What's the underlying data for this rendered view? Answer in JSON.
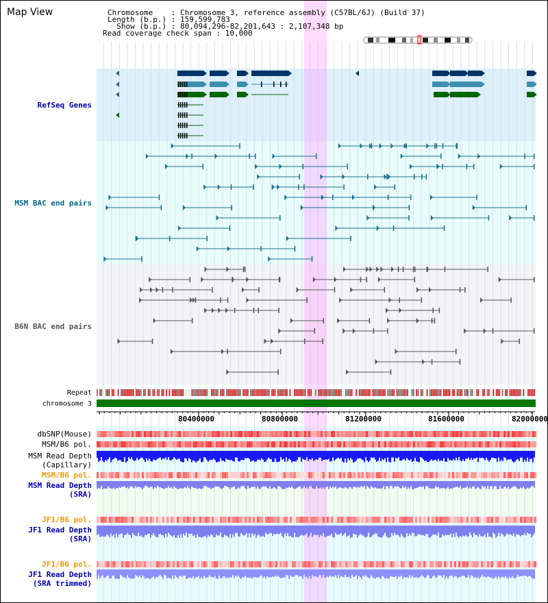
{
  "title": "Map View",
  "header": {
    "chromosome_line": "Chromosome    : Chromosome 3, reference assembly (C57BL/6J) (Build 37)",
    "length_line": "Length (b.p.) : 159,599,783",
    "show_line": "  Show (b.p.) : 80,094,296-82,201,643 : 2,107,348 bp",
    "coverage_line": "Read coverage check span : 10,000"
  },
  "tracks": {
    "refseq": "RefSeq Genes",
    "msm_bac": "MSM BAC end pairs",
    "b6n_bac": "B6N BAC end pairs",
    "repeat": "Repeat",
    "chromosome": "chromosome 3",
    "dbsnp": "dbSNP(Mouse)",
    "msm_b6_pol_1": "MSM/B6 pol.",
    "msm_read_depth_cap_1": "MSM Read Depth",
    "msm_read_depth_cap_2": "(Capillary)",
    "msm_b6_pol_2": "MSM/B6 pol.",
    "msm_read_depth_sra_1": "MSM Read Depth",
    "msm_read_depth_sra_2": "(SRA)",
    "jf1_b6_pol_1": "JF1/B6 pol.",
    "jf1_read_depth_sra_1": "JF1 Read Depth",
    "jf1_read_depth_sra_2": "(SRA)",
    "jf1_b6_pol_2": "JF1/B6 pol.",
    "jf1_read_depth_trim_1": "JF1 Read Depth",
    "jf1_read_depth_trim_2": "(SRA trimmed)"
  },
  "axis_ticks": [
    "80400000",
    "80800000",
    "81200000",
    "81600000",
    "82000000"
  ],
  "colors": {
    "refseq_label": "#0000aa",
    "msm_label": "#006688",
    "b6n_label": "#555555",
    "orange_label": "#ee9900",
    "blue_label": "#0000aa",
    "gene_dark": "#003366",
    "gene_mid": "#3b8fb0",
    "gene_green": "#006600",
    "highlight": "#ff99ff"
  }
}
